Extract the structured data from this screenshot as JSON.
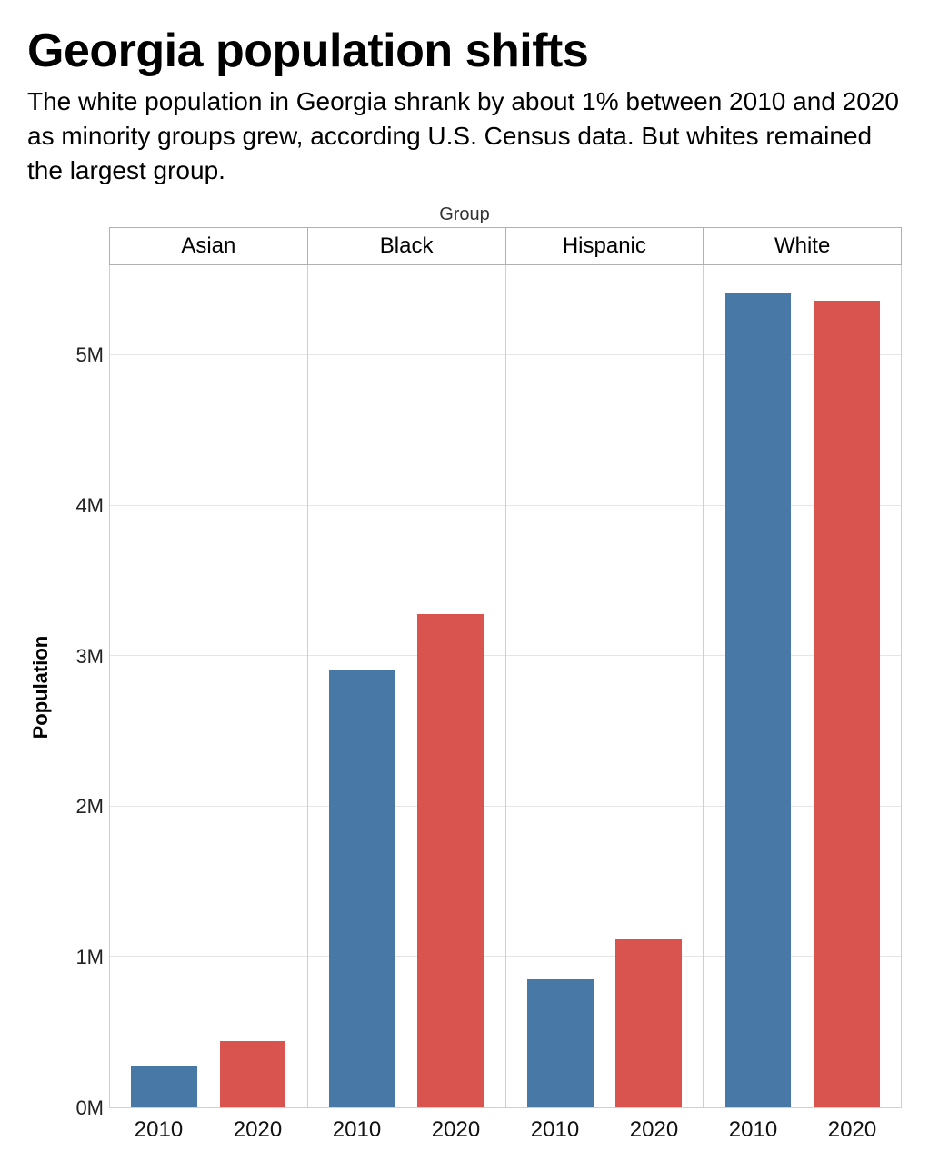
{
  "title": "Georgia population shifts",
  "subtitle": "The white population in Georgia shrank by about 1% between 2010 and 2020 as minority groups grew, according U.S. Census data. But whites remained the largest group.",
  "chart": {
    "type": "bar",
    "group_axis_label": "Group",
    "y_axis_label": "Population",
    "y_max": 5600000,
    "y_ticks": [
      {
        "value": 0,
        "label": "0M"
      },
      {
        "value": 1000000,
        "label": "1M"
      },
      {
        "value": 2000000,
        "label": "2M"
      },
      {
        "value": 3000000,
        "label": "3M"
      },
      {
        "value": 4000000,
        "label": "4M"
      },
      {
        "value": 5000000,
        "label": "5M"
      }
    ],
    "x_categories": [
      "2010",
      "2020"
    ],
    "series_colors": {
      "2010": "#4878a6",
      "2020": "#d9534f"
    },
    "grid_color": "#e5e5e5",
    "border_color": "#cfcfcf",
    "header_border_color": "#b0b0b0",
    "background_color": "#ffffff",
    "title_fontsize": 52,
    "subtitle_fontsize": 28,
    "facet_label_fontsize": 24,
    "tick_fontsize": 22,
    "axis_label_fontsize": 22,
    "facets": [
      {
        "name": "Asian",
        "values": {
          "2010": 280000,
          "2020": 440000
        }
      },
      {
        "name": "Black",
        "values": {
          "2010": 2910000,
          "2020": 3280000
        }
      },
      {
        "name": "Hispanic",
        "values": {
          "2010": 850000,
          "2020": 1120000
        }
      },
      {
        "name": "White",
        "values": {
          "2010": 5410000,
          "2020": 5360000
        }
      }
    ]
  }
}
